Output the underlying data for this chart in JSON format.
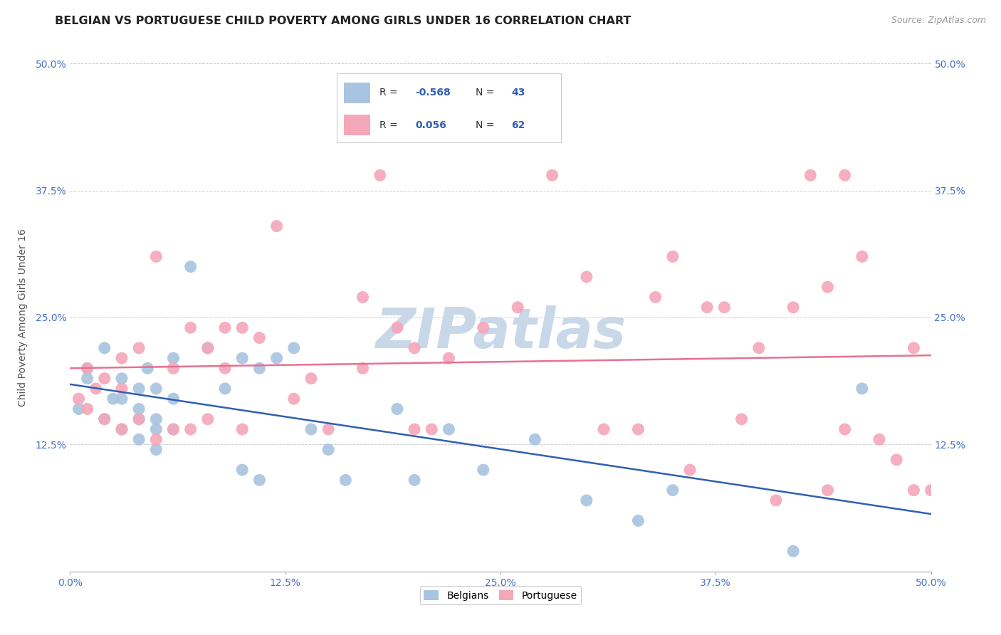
{
  "title": "BELGIAN VS PORTUGUESE CHILD POVERTY AMONG GIRLS UNDER 16 CORRELATION CHART",
  "source": "Source: ZipAtlas.com",
  "ylabel": "Child Poverty Among Girls Under 16",
  "xlim": [
    0,
    0.5
  ],
  "ylim": [
    0,
    0.5
  ],
  "xticks": [
    0.0,
    0.125,
    0.25,
    0.375,
    0.5
  ],
  "yticks": [
    0.0,
    0.125,
    0.25,
    0.375,
    0.5
  ],
  "xticklabels": [
    "0.0%",
    "12.5%",
    "25.0%",
    "37.5%",
    "50.0%"
  ],
  "yticklabels": [
    "",
    "12.5%",
    "25.0%",
    "37.5%",
    "50.0%"
  ],
  "belgian_color": "#a8c4e0",
  "portuguese_color": "#f4a7b9",
  "belgian_line_color": "#3060b0",
  "portuguese_line_color": "#e87090",
  "R_belgian": -0.568,
  "N_belgian": 43,
  "R_portuguese": 0.056,
  "N_portuguese": 62,
  "belgians_x": [
    0.005,
    0.01,
    0.01,
    0.02,
    0.02,
    0.025,
    0.03,
    0.03,
    0.03,
    0.04,
    0.04,
    0.04,
    0.04,
    0.045,
    0.05,
    0.05,
    0.05,
    0.05,
    0.06,
    0.06,
    0.06,
    0.07,
    0.08,
    0.09,
    0.1,
    0.1,
    0.11,
    0.11,
    0.12,
    0.13,
    0.14,
    0.15,
    0.16,
    0.19,
    0.2,
    0.22,
    0.24,
    0.27,
    0.3,
    0.33,
    0.35,
    0.42,
    0.46
  ],
  "belgians_y": [
    0.16,
    0.19,
    0.2,
    0.15,
    0.22,
    0.17,
    0.14,
    0.17,
    0.19,
    0.13,
    0.15,
    0.16,
    0.18,
    0.2,
    0.12,
    0.14,
    0.15,
    0.18,
    0.14,
    0.17,
    0.21,
    0.3,
    0.22,
    0.18,
    0.1,
    0.21,
    0.09,
    0.2,
    0.21,
    0.22,
    0.14,
    0.12,
    0.09,
    0.16,
    0.09,
    0.14,
    0.1,
    0.13,
    0.07,
    0.05,
    0.08,
    0.02,
    0.18
  ],
  "portuguese_x": [
    0.005,
    0.01,
    0.01,
    0.015,
    0.02,
    0.02,
    0.03,
    0.03,
    0.03,
    0.04,
    0.04,
    0.05,
    0.05,
    0.06,
    0.06,
    0.07,
    0.07,
    0.08,
    0.08,
    0.09,
    0.09,
    0.1,
    0.1,
    0.11,
    0.12,
    0.13,
    0.14,
    0.15,
    0.17,
    0.17,
    0.18,
    0.19,
    0.2,
    0.2,
    0.21,
    0.22,
    0.24,
    0.26,
    0.28,
    0.3,
    0.31,
    0.33,
    0.34,
    0.35,
    0.36,
    0.37,
    0.38,
    0.39,
    0.4,
    0.41,
    0.42,
    0.43,
    0.44,
    0.44,
    0.45,
    0.45,
    0.46,
    0.47,
    0.48,
    0.49,
    0.49,
    0.5
  ],
  "portuguese_y": [
    0.17,
    0.16,
    0.2,
    0.18,
    0.15,
    0.19,
    0.14,
    0.18,
    0.21,
    0.15,
    0.22,
    0.13,
    0.31,
    0.14,
    0.2,
    0.14,
    0.24,
    0.15,
    0.22,
    0.2,
    0.24,
    0.14,
    0.24,
    0.23,
    0.34,
    0.17,
    0.19,
    0.14,
    0.2,
    0.27,
    0.39,
    0.24,
    0.14,
    0.22,
    0.14,
    0.21,
    0.24,
    0.26,
    0.39,
    0.29,
    0.14,
    0.14,
    0.27,
    0.31,
    0.1,
    0.26,
    0.26,
    0.15,
    0.22,
    0.07,
    0.26,
    0.39,
    0.28,
    0.08,
    0.14,
    0.39,
    0.31,
    0.13,
    0.11,
    0.08,
    0.22,
    0.08
  ],
  "watermark": "ZIPatlas",
  "watermark_color": "#c8d8e8",
  "background_color": "#ffffff",
  "grid_color": "#cccccc",
  "title_fontsize": 11.5,
  "axis_label_fontsize": 10,
  "tick_fontsize": 10,
  "source_fontsize": 9,
  "legend_box_color": "#ffffff",
  "legend_border_color": "#cccccc"
}
